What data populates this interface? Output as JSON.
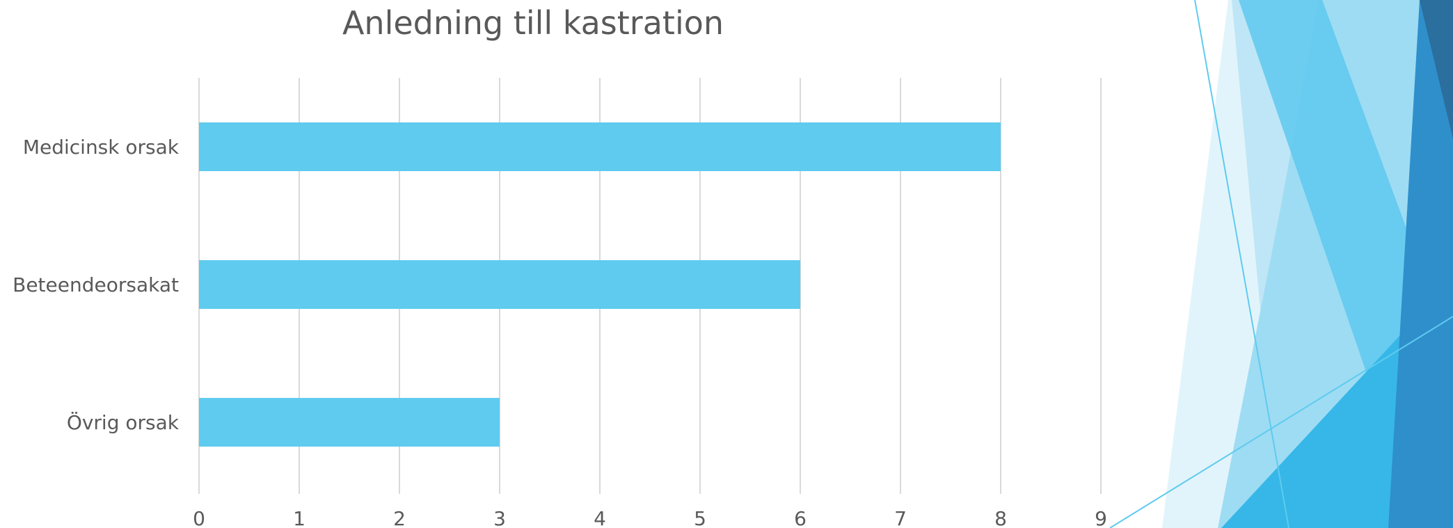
{
  "chart_data": {
    "type": "bar",
    "orientation": "horizontal",
    "title": "Anledning till kastration",
    "categories": [
      "Medicinsk orsak",
      "Beteendeorsakat",
      "Övrig orsak"
    ],
    "values": [
      8,
      6,
      3
    ],
    "xlim": [
      0,
      9
    ],
    "x_ticks": [
      0,
      1,
      2,
      3,
      4,
      5,
      6,
      7,
      8,
      9
    ],
    "xlabel": "",
    "ylabel": "",
    "grid": "vertical",
    "legend": "none",
    "bar_color": "#5ecbef"
  },
  "colors": {
    "text": "#595959",
    "grid": "#d9d9d9",
    "accent_light": "#c5e9f7",
    "accent_mid": "#4cc0ea",
    "accent_dark": "#2b78a8"
  }
}
